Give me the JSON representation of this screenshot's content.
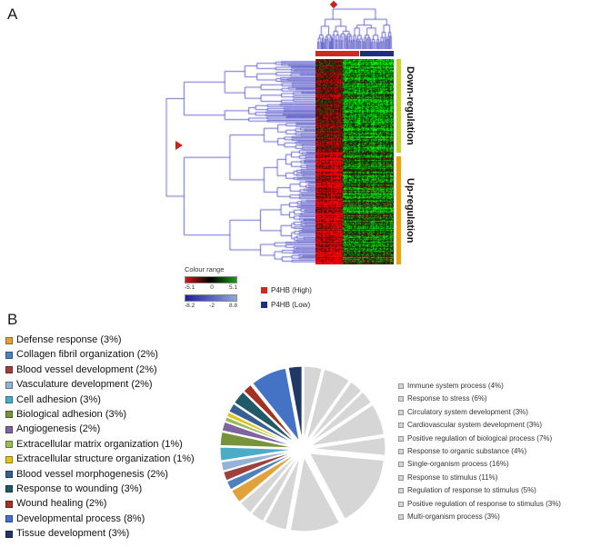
{
  "figure": {
    "panel_a_label": "A",
    "panel_b_label": "B"
  },
  "heatmap": {
    "row_groups": [
      {
        "label": "Down-regulation",
        "bar_color": "#c3d629"
      },
      {
        "label": "Up-regulation",
        "bar_color": "#f0a400"
      }
    ],
    "sample_groups": [
      {
        "label": "P4HB (High)",
        "color": "#cf2a20"
      },
      {
        "label": "P4HB (Low)",
        "color": "#1f2f7e"
      }
    ],
    "colour_range": {
      "title": "Colour range",
      "expression_scale": {
        "labels": [
          "-5.1",
          "0",
          "5.1"
        ],
        "gradient": [
          "#d01616",
          "#000000",
          "#15a015"
        ]
      },
      "tree_scale": {
        "labels": [
          "-8.2",
          "-2",
          "8.8"
        ],
        "gradient": [
          "#20209a",
          "#8fa6dd"
        ]
      }
    }
  },
  "chart_data": {
    "type": "pie",
    "title": "",
    "unit": "percent",
    "exploded": true,
    "legend_position": "left-and-right",
    "slices": [
      {
        "label": "Defense response (3%)",
        "value": 3,
        "color": "#E2A23B",
        "legend": "left"
      },
      {
        "label": "Collagen fibril organization (2%)",
        "value": 2,
        "color": "#4F81BD",
        "legend": "left"
      },
      {
        "label": "Blood vessel development (2%)",
        "value": 2,
        "color": "#9E413E",
        "legend": "left"
      },
      {
        "label": "Vasculature development (2%)",
        "value": 2,
        "color": "#95B3D7",
        "legend": "left"
      },
      {
        "label": "Cell adhesion (3%)",
        "value": 3,
        "color": "#4BACC6",
        "legend": "left"
      },
      {
        "label": "Biological adhesion (3%)",
        "value": 3,
        "color": "#77933C",
        "legend": "left"
      },
      {
        "label": "Angiogenesis (2%)",
        "value": 2,
        "color": "#8064A2",
        "legend": "left"
      },
      {
        "label": "Extracellular matrix organization (1%)",
        "value": 1,
        "color": "#9BBB59",
        "legend": "left"
      },
      {
        "label": "Extracellular structure organization (1%)",
        "value": 1,
        "color": "#E0C31C",
        "legend": "left"
      },
      {
        "label": "Blood vessel morphogenesis (2%)",
        "value": 2,
        "color": "#376092",
        "legend": "left"
      },
      {
        "label": "Response to wounding (3%)",
        "value": 3,
        "color": "#215968",
        "legend": "left"
      },
      {
        "label": "Wound healing (2%)",
        "value": 2,
        "color": "#A33223",
        "legend": "left"
      },
      {
        "label": "Developmental process (8%)",
        "value": 8,
        "color": "#4472C4",
        "legend": "left"
      },
      {
        "label": "Tissue development (3%)",
        "value": 3,
        "color": "#1F3864",
        "legend": "left"
      },
      {
        "label": "Immune system process (4%)",
        "value": 4,
        "color": "#D6D6D6",
        "legend": "right"
      },
      {
        "label": "Response to stress (6%)",
        "value": 6,
        "color": "#D6D6D6",
        "legend": "right"
      },
      {
        "label": "Circulatory system development (3%)",
        "value": 3,
        "color": "#D6D6D6",
        "legend": "right"
      },
      {
        "label": "Cardiovascular system development (3%)",
        "value": 3,
        "color": "#D6D6D6",
        "legend": "right"
      },
      {
        "label": "Positive regulation of biological process (7%)",
        "value": 7,
        "color": "#D6D6D6",
        "legend": "right"
      },
      {
        "label": "Response to organic substance (4%)",
        "value": 4,
        "color": "#D6D6D6",
        "legend": "right"
      },
      {
        "label": "Single-organism process (16%)",
        "value": 16,
        "color": "#D6D6D6",
        "legend": "right"
      },
      {
        "label": "Response to stimulus (11%)",
        "value": 11,
        "color": "#D6D6D6",
        "legend": "right"
      },
      {
        "label": "Regulation of response to stimulus (5%)",
        "value": 5,
        "color": "#D6D6D6",
        "legend": "right"
      },
      {
        "label": "Positive regulation of response to stimulus (3%)",
        "value": 3,
        "color": "#D6D6D6",
        "legend": "right"
      },
      {
        "label": "Multi-organism process (3%)",
        "value": 3,
        "color": "#D6D6D6",
        "legend": "right"
      }
    ]
  }
}
